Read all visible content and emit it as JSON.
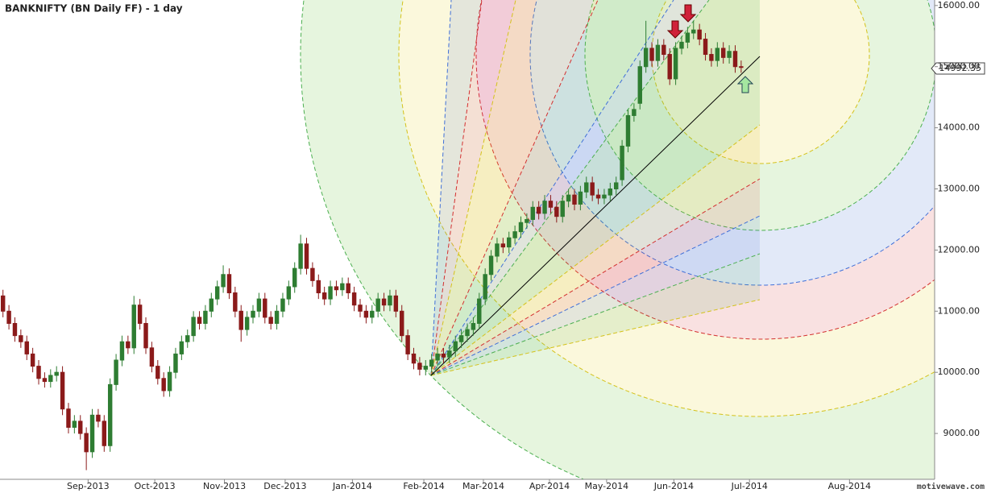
{
  "chart_data": {
    "type": "candlestick",
    "title": "BANKNIFTY (BN Daily FF) - 1 day",
    "up_color": "#2e7d32",
    "down_color": "#8b1a1a",
    "open": [
      11250,
      11000,
      10800,
      10600,
      10500,
      10300,
      10100,
      9900,
      9850,
      9950,
      10000,
      9400,
      9100,
      9200,
      9000,
      8700,
      9300,
      9200,
      8800,
      9800,
      10200,
      10500,
      10400,
      11100,
      10800,
      10400,
      10100,
      9900,
      9700,
      10000,
      10300,
      10500,
      10600,
      10900,
      10800,
      11000,
      11200,
      11400,
      11600,
      11300,
      11000,
      10700,
      10900,
      11000,
      11200,
      10900,
      10800,
      11000,
      11200,
      11400,
      11700,
      12100,
      11700,
      11500,
      11300,
      11200,
      11400,
      11350,
      11450,
      11300,
      11100,
      11000,
      10900,
      11000,
      11200,
      11100,
      11250,
      11000,
      10600,
      10300,
      10150,
      10050,
      10100,
      10200,
      10300,
      10250,
      10350,
      10500,
      10600,
      10700,
      10800,
      11200,
      11600,
      11900,
      12100,
      12050,
      12200,
      12300,
      12450,
      12500,
      12700,
      12600,
      12800,
      12700,
      12550,
      12800,
      12900,
      12750,
      12950,
      13100,
      12900,
      12850,
      12900,
      13000,
      13150,
      13700,
      14200,
      14400,
      15000,
      15300,
      15100,
      15350,
      15200,
      14800,
      15300,
      15400,
      15550,
      15600,
      15450,
      15200,
      15100,
      15300,
      15150,
      15250,
      15000
    ],
    "high": [
      11350,
      11100,
      10900,
      10700,
      10600,
      10400,
      10200,
      10000,
      10050,
      10100,
      10100,
      9500,
      9300,
      9300,
      9100,
      9400,
      9400,
      9300,
      9900,
      10300,
      10600,
      10600,
      11250,
      11200,
      10900,
      10500,
      10200,
      10000,
      10100,
      10400,
      10600,
      10700,
      11000,
      11000,
      11100,
      11300,
      11500,
      11750,
      11700,
      11400,
      11100,
      11000,
      11100,
      11300,
      11300,
      11000,
      11100,
      11300,
      11500,
      11800,
      12250,
      12200,
      11800,
      11600,
      11400,
      11500,
      11500,
      11550,
      11550,
      11400,
      11200,
      11100,
      11100,
      11300,
      11300,
      11350,
      11350,
      11100,
      10700,
      10400,
      10250,
      10200,
      10300,
      10400,
      10400,
      10450,
      10600,
      10700,
      10800,
      10900,
      11300,
      11700,
      12000,
      12200,
      12200,
      12300,
      12400,
      12550,
      12600,
      12800,
      12800,
      12900,
      12900,
      12800,
      12900,
      13000,
      13000,
      13050,
      13200,
      13200,
      13000,
      13000,
      13100,
      13200,
      13800,
      14300,
      14400,
      15100,
      15750,
      15400,
      15450,
      15450,
      15300,
      15400,
      15500,
      15650,
      15750,
      15700,
      15550,
      15300,
      15400,
      15400,
      15350,
      15350,
      15100
    ],
    "low": [
      10900,
      10700,
      10500,
      10400,
      10200,
      10000,
      9800,
      9750,
      9750,
      9850,
      9300,
      9000,
      9000,
      8900,
      8400,
      8600,
      9100,
      8700,
      8700,
      9700,
      10100,
      10300,
      10300,
      10700,
      10300,
      10000,
      9800,
      9600,
      9600,
      9900,
      10200,
      10400,
      10500,
      10700,
      10700,
      10900,
      11100,
      11300,
      11200,
      10900,
      10500,
      10600,
      10800,
      10900,
      10800,
      10700,
      10700,
      10900,
      11100,
      11300,
      11600,
      11600,
      11400,
      11200,
      11100,
      11100,
      11250,
      11250,
      11200,
      11000,
      10900,
      10800,
      10800,
      10900,
      11000,
      11000,
      10900,
      10500,
      10200,
      10050,
      9950,
      9950,
      10000,
      10100,
      10150,
      10150,
      10250,
      10400,
      10500,
      10600,
      10700,
      11100,
      11500,
      11800,
      11950,
      11950,
      12100,
      12200,
      12350,
      12400,
      12500,
      12500,
      12600,
      12450,
      12450,
      12700,
      12650,
      12650,
      12850,
      12800,
      12750,
      12750,
      12800,
      12900,
      13050,
      13600,
      14100,
      14300,
      14900,
      15000,
      15000,
      15100,
      14700,
      14700,
      15200,
      15300,
      15450,
      15350,
      15100,
      15000,
      15000,
      15050,
      15050,
      14900,
      14900
    ],
    "close": [
      11000,
      10800,
      10600,
      10500,
      10300,
      10100,
      9900,
      9850,
      9950,
      10000,
      9400,
      9100,
      9200,
      9000,
      8700,
      9300,
      9200,
      8800,
      9800,
      10200,
      10500,
      10400,
      11100,
      10800,
      10400,
      10100,
      9900,
      9700,
      10000,
      10300,
      10500,
      10600,
      10900,
      10800,
      11000,
      11200,
      11400,
      11600,
      11300,
      11000,
      10700,
      10900,
      11000,
      11200,
      10900,
      10800,
      11000,
      11200,
      11400,
      11700,
      12100,
      11700,
      11500,
      11300,
      11200,
      11400,
      11350,
      11450,
      11300,
      11100,
      11000,
      10900,
      11000,
      11200,
      11100,
      11250,
      11000,
      10600,
      10300,
      10150,
      10050,
      10100,
      10200,
      10300,
      10250,
      10350,
      10500,
      10600,
      10700,
      10800,
      11200,
      11600,
      11900,
      12100,
      12050,
      12200,
      12300,
      12450,
      12500,
      12700,
      12600,
      12800,
      12700,
      12550,
      12800,
      12900,
      12750,
      12950,
      13100,
      12900,
      12850,
      12900,
      13000,
      13100,
      13700,
      14200,
      14300,
      15000,
      15300,
      15100,
      15350,
      15200,
      14800,
      15300,
      15400,
      15550,
      15600,
      15450,
      15200,
      15100,
      15300,
      15150,
      15250,
      15000,
      14992.35
    ],
    "last_price": 14992.35,
    "xlim": [
      0,
      157
    ],
    "xticks": [
      {
        "value": 14.8,
        "label": "Sep-2013"
      },
      {
        "value": 26,
        "label": "Oct-2013"
      },
      {
        "value": 37.7,
        "label": "Nov-2013"
      },
      {
        "value": 47.9,
        "label": "Dec-2013"
      },
      {
        "value": 59.2,
        "label": "Jan-2014"
      },
      {
        "value": 71.2,
        "label": "Feb-2014"
      },
      {
        "value": 81.2,
        "label": "Mar-2014"
      },
      {
        "value": 92.3,
        "label": "Apr-2014"
      },
      {
        "value": 101.9,
        "label": "May-2014"
      },
      {
        "value": 113.2,
        "label": "Jun-2014"
      },
      {
        "value": 125.9,
        "label": "Jul-2014"
      },
      {
        "value": 142.7,
        "label": "Aug-2014"
      }
    ],
    "ylim": [
      8250,
      16090
    ],
    "yticks": [
      {
        "value": 9000,
        "label": "9000.00"
      },
      {
        "value": 10000,
        "label": "10000.00"
      },
      {
        "value": 11000,
        "label": "11000.00"
      },
      {
        "value": 12000,
        "label": "12000.00"
      },
      {
        "value": 13000,
        "label": "13000.00"
      },
      {
        "value": 14000,
        "label": "14000.00"
      },
      {
        "value": 15000,
        "label": "15000.00"
      },
      {
        "value": 16000,
        "label": "16000.00"
      }
    ]
  },
  "watermark": "motivewave.com"
}
